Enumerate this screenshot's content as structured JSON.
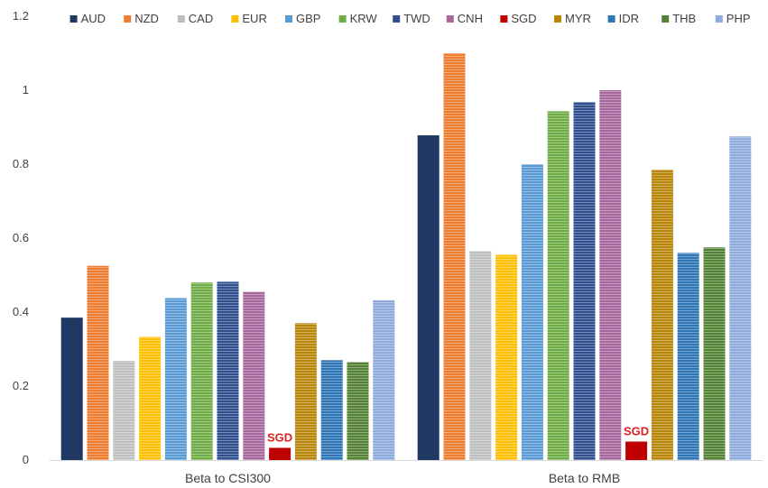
{
  "chart_data": {
    "type": "bar",
    "title": "",
    "xlabel": "",
    "ylabel": "",
    "ylim": [
      0,
      1.2
    ],
    "yticks": [
      0,
      0.2,
      0.4,
      0.6,
      0.8,
      1,
      1.2
    ],
    "ytick_labels": [
      "0",
      "0.2",
      "0.4",
      "0.6",
      "0.8",
      "1",
      "1.2"
    ],
    "grid": false,
    "legend_position": "top",
    "categories": [
      "Beta to CSI300",
      "Beta to RMB"
    ],
    "series": [
      {
        "name": "AUD",
        "color": "#1f3864",
        "values": [
          0.385,
          0.878
        ]
      },
      {
        "name": "NZD",
        "color": "#ed7d31",
        "values": [
          0.525,
          1.1
        ]
      },
      {
        "name": "CAD",
        "color": "#bfbfbf",
        "values": [
          0.268,
          0.565
        ]
      },
      {
        "name": "EUR",
        "color": "#ffc000",
        "values": [
          0.333,
          0.555
        ]
      },
      {
        "name": "GBP",
        "color": "#5b9bd5",
        "values": [
          0.438,
          0.8
        ]
      },
      {
        "name": "KRW",
        "color": "#70ad47",
        "values": [
          0.48,
          0.943
        ]
      },
      {
        "name": "TWD",
        "color": "#2f4f8f",
        "values": [
          0.482,
          0.968
        ]
      },
      {
        "name": "CNH",
        "color": "#a5679c",
        "values": [
          0.455,
          1.0
        ]
      },
      {
        "name": "SGD",
        "color": "#c00000",
        "values": [
          0.033,
          0.05
        ]
      },
      {
        "name": "MYR",
        "color": "#b8860b",
        "values": [
          0.37,
          0.785
        ]
      },
      {
        "name": "IDR",
        "color": "#2e75b6",
        "values": [
          0.27,
          0.56
        ]
      },
      {
        "name": "THB",
        "color": "#548235",
        "values": [
          0.265,
          0.575
        ]
      },
      {
        "name": "PHP",
        "color": "#8faadc",
        "values": [
          0.432,
          0.875
        ]
      }
    ],
    "annotations": [
      {
        "text": "SGD",
        "category": "Beta to CSI300",
        "series": "SGD"
      },
      {
        "text": "SGD",
        "category": "Beta to RMB",
        "series": "SGD"
      }
    ]
  }
}
